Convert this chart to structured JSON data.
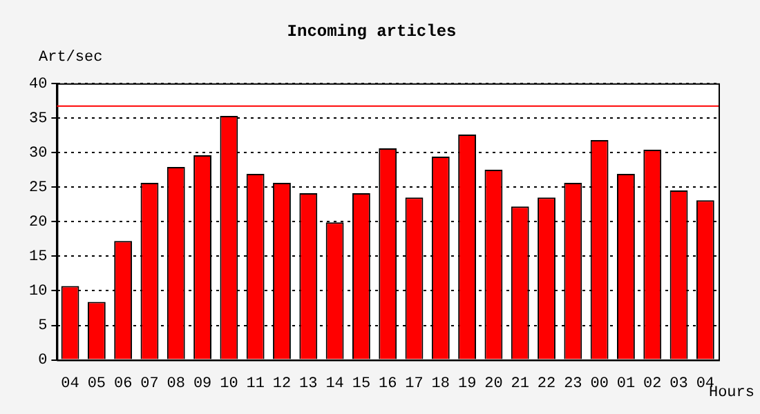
{
  "chart_data": {
    "type": "bar",
    "title": "Incoming articles",
    "ylabel": "Art/sec",
    "xlabel": "Hours",
    "categories": [
      "04",
      "05",
      "06",
      "07",
      "08",
      "09",
      "10",
      "11",
      "12",
      "13",
      "14",
      "15",
      "16",
      "17",
      "18",
      "19",
      "20",
      "21",
      "22",
      "23",
      "00",
      "01",
      "02",
      "03",
      "04"
    ],
    "values": [
      10.7,
      8.4,
      17.2,
      25.6,
      27.9,
      29.6,
      35.3,
      26.9,
      25.6,
      24.1,
      19.9,
      24.1,
      30.6,
      23.5,
      29.4,
      32.6,
      27.5,
      22.2,
      23.5,
      25.6,
      31.8,
      26.9,
      30.4,
      24.5,
      23.1
    ],
    "color": "#ff0000",
    "ylim": [
      0,
      40
    ],
    "yticks": [
      0,
      5,
      10,
      15,
      20,
      25,
      30,
      35,
      40
    ],
    "grid": "y",
    "line_style": "dotted",
    "ref_lines": [
      {
        "axis": "y",
        "value": 36.7,
        "color": "#ff0000"
      }
    ]
  }
}
